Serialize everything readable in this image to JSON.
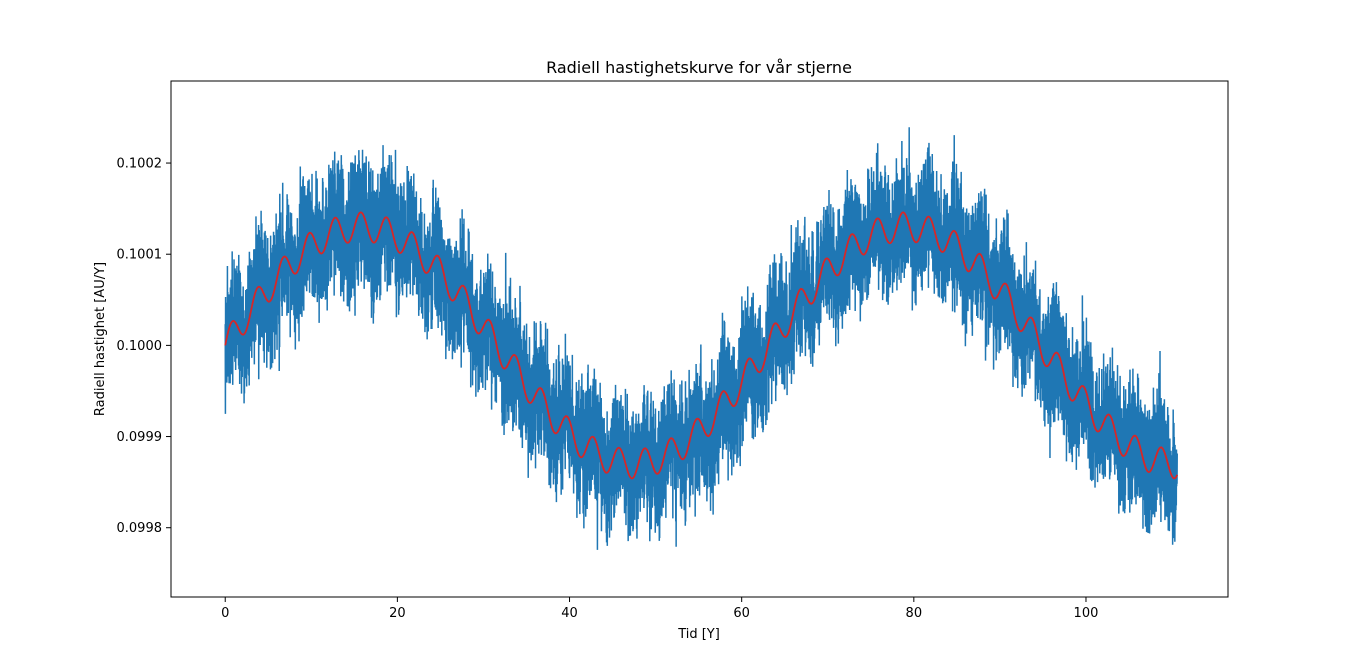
{
  "chart_data": {
    "type": "line",
    "title": "Radiell hastighetskurve for vår stjerne",
    "xlabel": "Tid [Y]",
    "ylabel": "Radiell hastighet [AU/Y]",
    "xlim": [
      -6.3,
      116.5
    ],
    "ylim": [
      0.099724,
      0.10029
    ],
    "xticks": [
      0,
      20,
      40,
      60,
      80,
      100
    ],
    "xtick_labels": [
      "0",
      "20",
      "40",
      "60",
      "80",
      "100"
    ],
    "yticks": [
      0.0998,
      0.0999,
      0.1,
      0.1001,
      0.1002
    ],
    "ytick_labels": [
      "0.0998",
      "0.0999",
      "0.1000",
      "0.1001",
      "0.1002"
    ],
    "grid": false,
    "legend": "none",
    "x_range": [
      0,
      110.6
    ],
    "series": [
      {
        "color": "#1f77b4",
        "description": "noisy measured radial velocity",
        "model": {
          "offset": 0.1,
          "amp_slow": 0.00013,
          "period_slow": 63.2,
          "amp_fast": 1.6e-05,
          "period_fast": 3.0,
          "noise_halfwidth": 9e-05,
          "noise_extreme": 0.00013
        }
      },
      {
        "color": "#d62728",
        "description": "model velocity curve",
        "model": {
          "offset": 0.1,
          "amp_slow": 0.00013,
          "period_slow": 63.2,
          "amp_fast": 1.6e-05,
          "period_fast": 3.0
        }
      }
    ]
  }
}
